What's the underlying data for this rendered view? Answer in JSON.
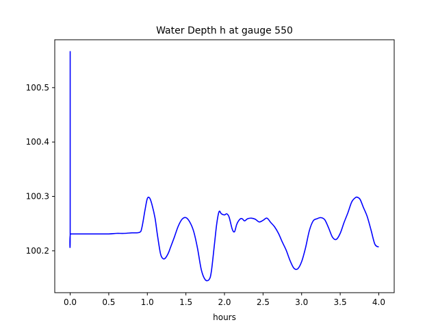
{
  "chart_data": {
    "type": "line",
    "title": "Water Depth h at gauge 550",
    "xlabel": "hours",
    "ylabel": "",
    "xlim": [
      -0.2,
      4.2
    ],
    "ylim": [
      100.123,
      100.588
    ],
    "xticks": [
      0.0,
      0.5,
      1.0,
      1.5,
      2.0,
      2.5,
      3.0,
      3.5,
      4.0
    ],
    "xtick_labels": [
      "0.0",
      "0.5",
      "1.0",
      "1.5",
      "2.0",
      "2.5",
      "3.0",
      "3.5",
      "4.0"
    ],
    "yticks": [
      100.2,
      100.3,
      100.4,
      100.5
    ],
    "ytick_labels": [
      "100.2",
      "100.3",
      "100.4",
      "100.5"
    ],
    "grid": false,
    "series": [
      {
        "color": "#0000ff",
        "x": [
          0.0,
          0.0,
          0.005,
          0.1,
          0.3,
          0.5,
          0.6,
          0.7,
          0.8,
          0.9,
          0.93,
          0.97,
          1.0,
          1.03,
          1.06,
          1.1,
          1.13,
          1.17,
          1.2,
          1.23,
          1.27,
          1.3,
          1.35,
          1.4,
          1.45,
          1.5,
          1.55,
          1.6,
          1.65,
          1.7,
          1.75,
          1.8,
          1.83,
          1.87,
          1.9,
          1.93,
          1.96,
          2.0,
          2.03,
          2.06,
          2.1,
          2.13,
          2.16,
          2.2,
          2.23,
          2.26,
          2.3,
          2.35,
          2.4,
          2.45,
          2.5,
          2.55,
          2.6,
          2.65,
          2.7,
          2.75,
          2.8,
          2.85,
          2.9,
          2.95,
          3.0,
          3.05,
          3.1,
          3.15,
          3.2,
          3.25,
          3.3,
          3.35,
          3.4,
          3.45,
          3.5,
          3.55,
          3.6,
          3.65,
          3.7,
          3.73,
          3.76,
          3.8,
          3.85,
          3.9,
          3.95,
          4.0
        ],
        "y": [
          100.567,
          100.231,
          100.231,
          100.231,
          100.231,
          100.231,
          100.232,
          100.232,
          100.233,
          100.234,
          100.243,
          100.275,
          100.296,
          100.297,
          100.285,
          100.26,
          100.23,
          100.195,
          100.186,
          100.186,
          100.195,
          100.206,
          100.225,
          100.245,
          100.258,
          100.261,
          100.253,
          100.236,
          100.205,
          100.165,
          100.147,
          100.147,
          100.162,
          100.212,
          100.25,
          100.272,
          100.268,
          100.266,
          100.268,
          100.262,
          100.24,
          100.235,
          100.249,
          100.258,
          100.259,
          100.255,
          100.259,
          100.26,
          100.258,
          100.253,
          100.256,
          100.26,
          100.252,
          100.244,
          100.232,
          100.216,
          100.201,
          100.182,
          100.168,
          100.167,
          100.18,
          100.205,
          100.237,
          100.255,
          100.259,
          100.261,
          100.257,
          100.242,
          100.225,
          100.221,
          100.232,
          100.252,
          100.27,
          100.29,
          100.298,
          100.298,
          100.294,
          100.28,
          100.263,
          100.238,
          100.212,
          100.207
        ]
      }
    ]
  }
}
